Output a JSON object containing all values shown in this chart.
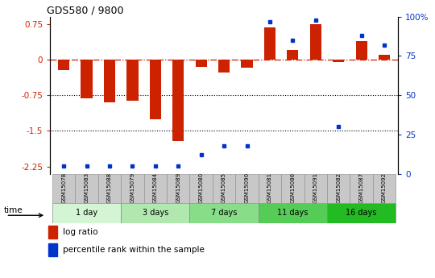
{
  "title": "GDS580 / 9800",
  "samples": [
    "GSM15078",
    "GSM15083",
    "GSM15088",
    "GSM15079",
    "GSM15084",
    "GSM15089",
    "GSM15080",
    "GSM15085",
    "GSM15090",
    "GSM15081",
    "GSM15086",
    "GSM15091",
    "GSM15082",
    "GSM15087",
    "GSM15092"
  ],
  "log_ratio": [
    -0.22,
    -0.82,
    -0.9,
    -0.87,
    -1.25,
    -1.72,
    -0.15,
    -0.28,
    -0.18,
    0.68,
    0.2,
    0.75,
    -0.05,
    0.38,
    0.1
  ],
  "percentile": [
    5,
    5,
    5,
    5,
    5,
    5,
    12,
    18,
    18,
    97,
    85,
    98,
    30,
    88,
    82
  ],
  "groups": [
    {
      "label": "1 day",
      "count": 3,
      "color": "#d4f5d4"
    },
    {
      "label": "3 days",
      "count": 3,
      "color": "#b0e8b0"
    },
    {
      "label": "7 days",
      "count": 3,
      "color": "#88dd88"
    },
    {
      "label": "11 days",
      "count": 3,
      "color": "#55cc55"
    },
    {
      "label": "16 days",
      "count": 3,
      "color": "#22bb22"
    }
  ],
  "bar_color_red": "#cc2200",
  "bar_color_blue": "#0033cc",
  "ylim": [
    -2.4,
    0.9
  ],
  "yticks_left": [
    0.75,
    0.0,
    -0.75,
    -1.5,
    -2.25
  ],
  "yticks_right_vals": [
    100,
    75,
    50,
    25,
    0
  ],
  "legend_labels": [
    "log ratio",
    "percentile rank within the sample"
  ],
  "bar_width": 0.5
}
